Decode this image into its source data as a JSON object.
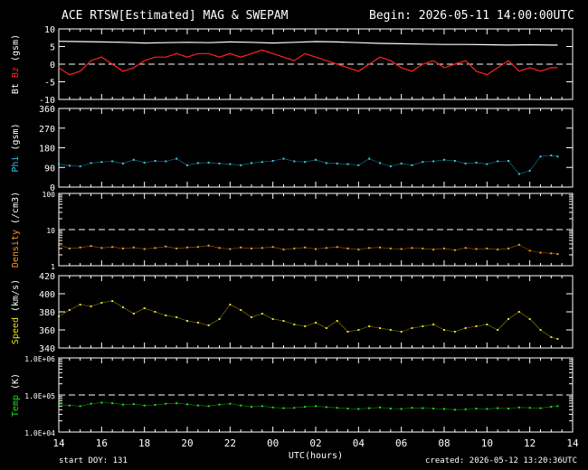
{
  "header": {
    "title": "ACE RTSW[Estimated] MAG & SWEPAM",
    "begin": "Begin: 2026-05-11 14:00:00UTC"
  },
  "footer": {
    "start_doy": "start DOY: 131",
    "created": "created: 2026-05-12 13:20:36UTC"
  },
  "colors": {
    "bt": "#ffffff",
    "bz": "#ff2222",
    "phi": "#33ccee",
    "density": "#ff9922",
    "speed": "#eedd22",
    "temp": "#22dd22",
    "axis": "#ffffff",
    "background": "#000000"
  },
  "chart_data": {
    "type": "scatter",
    "xlabel": "UTC(hours)",
    "x_tick_labels": [
      "14",
      "16",
      "18",
      "20",
      "22",
      "00",
      "02",
      "04",
      "06",
      "08",
      "10",
      "12",
      "14"
    ],
    "x_range_hours": [
      0,
      24
    ],
    "panels": [
      {
        "id": "mag",
        "ylabel_parts": [
          "Bt",
          "Bz",
          "(gsm)"
        ],
        "ylim": [
          -10,
          10
        ],
        "yticks": [
          -10,
          -5,
          0,
          5,
          10
        ],
        "scale": "linear",
        "dashed_line": 0,
        "series": [
          {
            "name": "Bt",
            "color_key": "bt",
            "style": "line",
            "x": [
              0,
              1,
              2,
              3,
              4,
              5,
              6,
              7,
              8,
              9,
              10,
              11,
              12,
              13,
              14,
              15,
              16,
              17,
              18,
              19,
              20,
              21,
              22,
              23,
              23.3
            ],
            "y": [
              6.5,
              6.4,
              6.3,
              6.2,
              6.0,
              6.1,
              6.2,
              6.1,
              6.3,
              6.2,
              6.0,
              6.2,
              6.4,
              6.3,
              6.1,
              5.9,
              5.8,
              5.7,
              5.6,
              5.6,
              5.5,
              5.4,
              5.5,
              5.4,
              5.4
            ]
          },
          {
            "name": "Bz",
            "color_key": "bz",
            "style": "line",
            "x": [
              0,
              0.5,
              1,
              1.5,
              2,
              2.5,
              3,
              3.5,
              4,
              4.5,
              5,
              5.5,
              6,
              6.5,
              7,
              7.5,
              8,
              8.5,
              9,
              9.5,
              10,
              10.5,
              11,
              11.5,
              12,
              12.5,
              13,
              13.5,
              14,
              14.5,
              15,
              15.5,
              16,
              16.5,
              17,
              17.5,
              18,
              18.5,
              19,
              19.5,
              20,
              20.5,
              21,
              21.5,
              22,
              22.5,
              23,
              23.3
            ],
            "y": [
              -1,
              -3,
              -2,
              1,
              2,
              0,
              -2,
              -1,
              1,
              2,
              2,
              3,
              2,
              3,
              3,
              2,
              3,
              2,
              3,
              4,
              3,
              2,
              1,
              3,
              2,
              1,
              0,
              -1,
              -2,
              0,
              2,
              1,
              -1,
              -2,
              0,
              1,
              -1,
              0,
              1,
              -2,
              -3,
              -1,
              1,
              -2,
              -1,
              -2,
              -1,
              -1
            ]
          }
        ]
      },
      {
        "id": "phi",
        "ylabel_parts": [
          "Phi",
          "(gsm)"
        ],
        "ylim": [
          0,
          360
        ],
        "yticks": [
          0,
          90,
          180,
          270,
          360
        ],
        "scale": "linear",
        "series": [
          {
            "name": "Phi",
            "color_key": "phi",
            "style": "points",
            "x": [
              0,
              0.5,
              1,
              1.5,
              2,
              2.5,
              3,
              3.5,
              4,
              4.5,
              5,
              5.5,
              6,
              6.5,
              7,
              7.5,
              8,
              8.5,
              9,
              9.5,
              10,
              10.5,
              11,
              11.5,
              12,
              12.5,
              13,
              13.5,
              14,
              14.5,
              15,
              15.5,
              16,
              16.5,
              17,
              17.5,
              18,
              18.5,
              19,
              19.5,
              20,
              20.5,
              21,
              21.5,
              22,
              22.5,
              23,
              23.3
            ],
            "y": [
              105,
              98,
              95,
              110,
              115,
              118,
              108,
              125,
              112,
              120,
              118,
              130,
              100,
              110,
              112,
              108,
              105,
              100,
              110,
              115,
              120,
              130,
              118,
              115,
              125,
              110,
              108,
              105,
              100,
              130,
              110,
              95,
              108,
              100,
              115,
              118,
              125,
              120,
              108,
              112,
              105,
              118,
              120,
              60,
              75,
              140,
              145,
              140
            ]
          }
        ]
      },
      {
        "id": "density",
        "ylabel_parts": [
          "Density",
          "(/cm3)"
        ],
        "ylim": [
          1,
          100
        ],
        "ytick_values": [
          1,
          10,
          100
        ],
        "ytick_labels": [
          "1",
          "10",
          "100"
        ],
        "scale": "log",
        "dashed_line": 10,
        "series": [
          {
            "name": "Density",
            "color_key": "density",
            "style": "points",
            "x": [
              0,
              0.5,
              1,
              1.5,
              2,
              2.5,
              3,
              3.5,
              4,
              4.5,
              5,
              5.5,
              6,
              6.5,
              7,
              7.5,
              8,
              8.5,
              9,
              9.5,
              10,
              10.5,
              11,
              11.5,
              12,
              12.5,
              13,
              13.5,
              14,
              14.5,
              15,
              15.5,
              16,
              16.5,
              17,
              17.5,
              18,
              18.5,
              19,
              19.5,
              20,
              20.5,
              21,
              21.5,
              22,
              22.5,
              23,
              23.3
            ],
            "y": [
              3.8,
              3.0,
              3.2,
              3.5,
              3.1,
              3.3,
              3.0,
              3.2,
              2.9,
              3.1,
              3.4,
              3.0,
              3.2,
              3.3,
              3.6,
              3.1,
              2.9,
              3.2,
              3.0,
              3.1,
              3.3,
              2.8,
              3.0,
              3.2,
              2.9,
              3.1,
              3.3,
              3.0,
              2.8,
              3.1,
              3.2,
              3.0,
              2.9,
              3.1,
              3.0,
              2.8,
              3.0,
              2.7,
              3.1,
              2.9,
              3.0,
              2.8,
              3.0,
              3.8,
              2.6,
              2.3,
              2.2,
              2.1
            ]
          }
        ]
      },
      {
        "id": "speed",
        "ylabel_parts": [
          "Speed",
          "(km/s)"
        ],
        "ylim": [
          340,
          420
        ],
        "yticks": [
          340,
          360,
          380,
          400,
          420
        ],
        "scale": "linear",
        "series": [
          {
            "name": "Speed",
            "color_key": "speed",
            "style": "points",
            "x": [
              0,
              0.5,
              1,
              1.5,
              2,
              2.5,
              3,
              3.5,
              4,
              4.5,
              5,
              5.5,
              6,
              6.5,
              7,
              7.5,
              8,
              8.5,
              9,
              9.5,
              10,
              10.5,
              11,
              11.5,
              12,
              12.5,
              13,
              13.5,
              14,
              14.5,
              15,
              15.5,
              16,
              16.5,
              17,
              17.5,
              18,
              18.5,
              19,
              19.5,
              20,
              20.5,
              21,
              21.5,
              22,
              22.5,
              23,
              23.3
            ],
            "y": [
              375,
              382,
              388,
              386,
              390,
              392,
              385,
              378,
              384,
              380,
              376,
              374,
              370,
              368,
              365,
              372,
              388,
              382,
              374,
              378,
              372,
              370,
              366,
              364,
              368,
              362,
              370,
              358,
              360,
              364,
              362,
              360,
              358,
              362,
              364,
              366,
              360,
              358,
              362,
              364,
              366,
              360,
              372,
              380,
              372,
              360,
              352,
              350
            ]
          }
        ]
      },
      {
        "id": "temp",
        "ylabel_parts": [
          "Temp",
          "(K)"
        ],
        "ylim": [
          10000,
          1000000
        ],
        "ytick_values": [
          10000,
          100000,
          1000000
        ],
        "ytick_labels": [
          "1.0E+04",
          "1.0E+05",
          "1.0E+06"
        ],
        "scale": "log",
        "dashed_line": 100000,
        "series": [
          {
            "name": "Temp",
            "color_key": "temp",
            "style": "points",
            "x": [
              0,
              0.5,
              1,
              1.5,
              2,
              2.5,
              3,
              3.5,
              4,
              4.5,
              5,
              5.5,
              6,
              6.5,
              7,
              7.5,
              8,
              8.5,
              9,
              9.5,
              10,
              10.5,
              11,
              11.5,
              12,
              12.5,
              13,
              13.5,
              14,
              14.5,
              15,
              15.5,
              16,
              16.5,
              17,
              17.5,
              18,
              18.5,
              19,
              19.5,
              20,
              20.5,
              21,
              21.5,
              22,
              22.5,
              23,
              23.3
            ],
            "y": [
              55000,
              52000,
              50000,
              58000,
              62000,
              60000,
              55000,
              57000,
              52000,
              54000,
              58000,
              60000,
              56000,
              52000,
              50000,
              55000,
              58000,
              52000,
              48000,
              50000,
              46000,
              44000,
              45000,
              48000,
              50000,
              47000,
              45000,
              43000,
              42000,
              44000,
              46000,
              43000,
              42000,
              45000,
              44000,
              43000,
              42000,
              40000,
              41000,
              43000,
              42000,
              44000,
              43000,
              46000,
              45000,
              44000,
              48000,
              50000
            ]
          }
        ]
      }
    ]
  }
}
